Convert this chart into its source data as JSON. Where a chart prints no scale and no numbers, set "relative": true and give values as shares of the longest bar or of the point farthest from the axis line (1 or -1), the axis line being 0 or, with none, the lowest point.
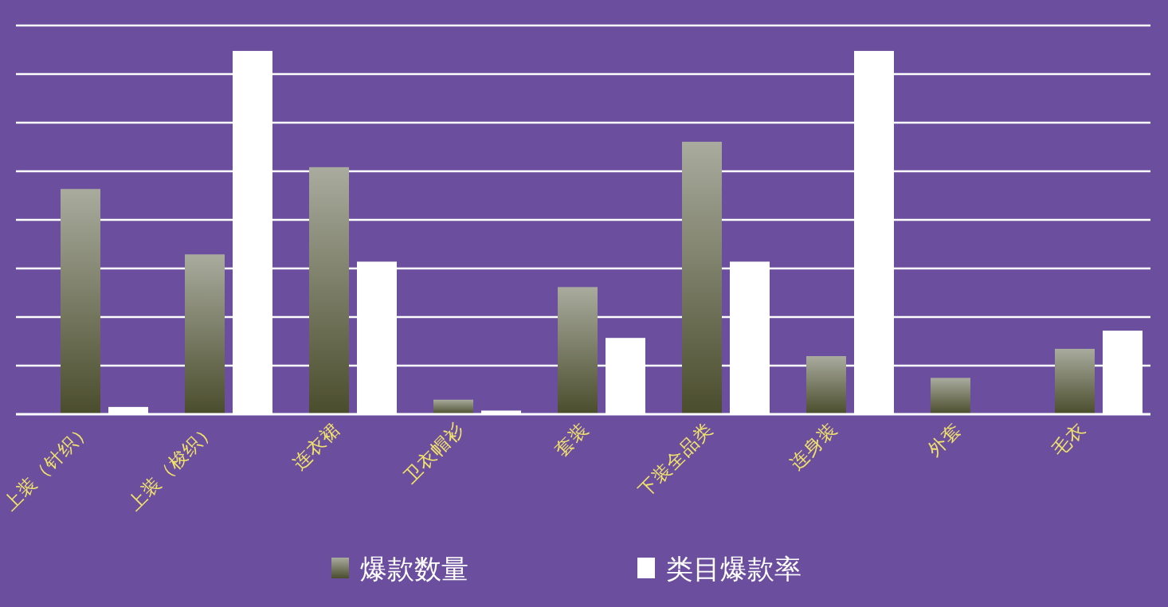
{
  "chart_data": {
    "type": "bar",
    "relative": true,
    "grid": true,
    "legend": "bottom",
    "categories": [
      "上装（针织）",
      "上装（梭织）",
      "连衣裙",
      "卫衣帽衫",
      "套装",
      "下装全品类",
      "连身装",
      "外套",
      "毛衣"
    ],
    "series": [
      {
        "name": "爆款数量",
        "color": "#a9ab9e",
        "values": [
          0.62,
          0.44,
          0.68,
          0.04,
          0.35,
          0.75,
          0.16,
          0.1,
          0.18
        ]
      },
      {
        "name": "类目爆款率",
        "color": "#ffffff",
        "values": [
          0.02,
          1,
          0.42,
          0.01,
          0.21,
          0.42,
          1,
          null,
          0.23
        ]
      }
    ]
  }
}
